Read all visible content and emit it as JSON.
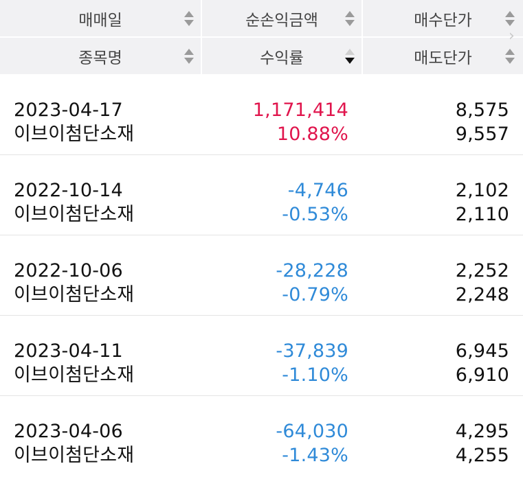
{
  "header": {
    "row1": [
      "매매일",
      "순손익금액",
      "매수단가"
    ],
    "row2": [
      "종목명",
      "수익률",
      "매도단가"
    ]
  },
  "colors": {
    "positive": "#e0144c",
    "negative": "#2f8ad8",
    "header_bg": "#f1f1f3"
  },
  "icons": {
    "sort": "sort-updown-icon",
    "next": "chevron-right-icon"
  },
  "rows": [
    {
      "date": "2023-04-17",
      "name": "이브이첨단소재",
      "profit": "1,171,414",
      "rate": "10.88%",
      "buy": "8,575",
      "sell": "9,557",
      "sign": "positive"
    },
    {
      "date": "2022-10-14",
      "name": "이브이첨단소재",
      "profit": "-4,746",
      "rate": "-0.53%",
      "buy": "2,102",
      "sell": "2,110",
      "sign": "negative"
    },
    {
      "date": "2022-10-06",
      "name": "이브이첨단소재",
      "profit": "-28,228",
      "rate": "-0.79%",
      "buy": "2,252",
      "sell": "2,248",
      "sign": "negative"
    },
    {
      "date": "2023-04-11",
      "name": "이브이첨단소재",
      "profit": "-37,839",
      "rate": "-1.10%",
      "buy": "6,945",
      "sell": "6,910",
      "sign": "negative"
    },
    {
      "date": "2023-04-06",
      "name": "이브이첨단소재",
      "profit": "-64,030",
      "rate": "-1.43%",
      "buy": "4,295",
      "sell": "4,255",
      "sign": "negative"
    }
  ]
}
